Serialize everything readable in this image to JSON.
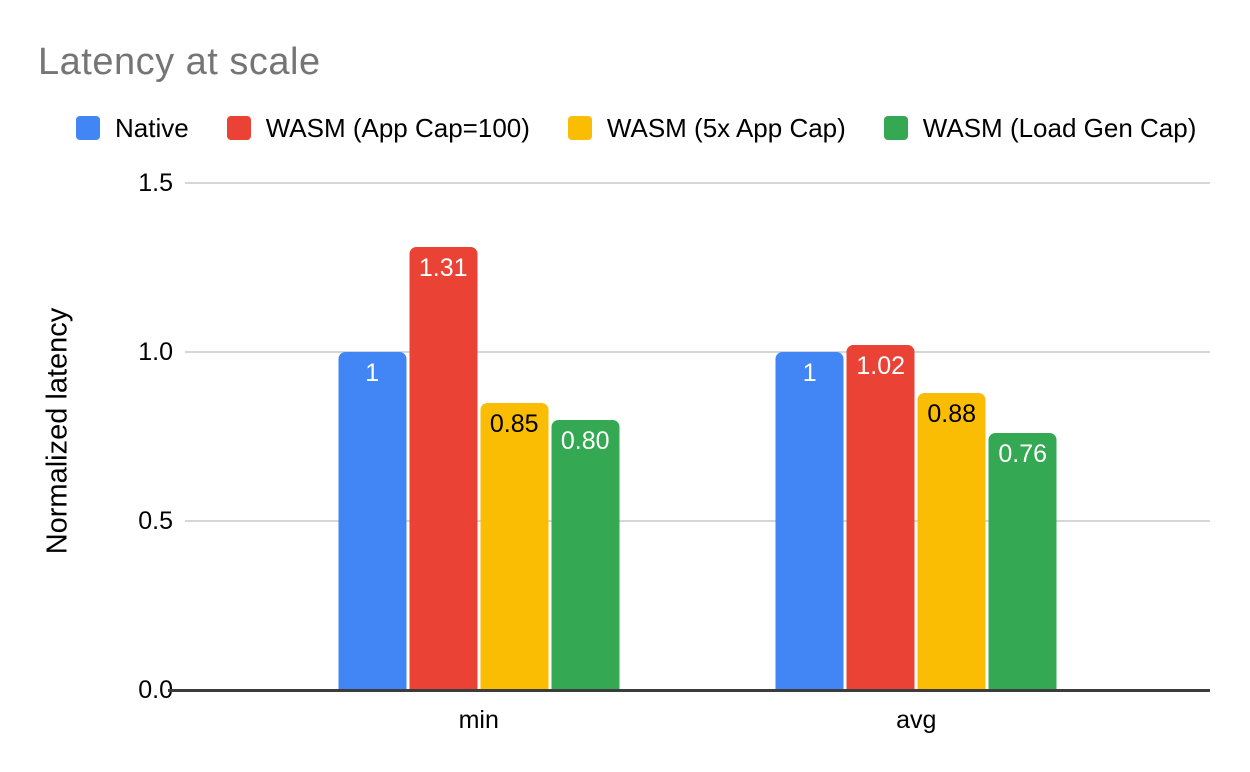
{
  "colors": {
    "background": "#ffffff",
    "title_text": "#757575",
    "body_text": "#000000",
    "gridline": "#d6d6d6",
    "axis_line": "#3c3c3c"
  },
  "chart_data": {
    "type": "bar",
    "title": "Latency at scale",
    "xlabel": "",
    "ylabel": "Normalized latency",
    "categories": [
      "min",
      "avg"
    ],
    "series": [
      {
        "name": "Native",
        "color": "#4285F4",
        "label_color": "#ffffff",
        "values": [
          1,
          1
        ],
        "labels": [
          "1",
          "1"
        ]
      },
      {
        "name": "WASM (App Cap=100)",
        "color": "#EA4335",
        "label_color": "#ffffff",
        "values": [
          1.31,
          1.02
        ],
        "labels": [
          "1.31",
          "1.02"
        ]
      },
      {
        "name": "WASM (5x App Cap)",
        "color": "#FBBC04",
        "label_color": "#000000",
        "values": [
          0.85,
          0.88
        ],
        "labels": [
          "0.85",
          "0.88"
        ]
      },
      {
        "name": "WASM (Load Gen Cap)",
        "color": "#34A853",
        "label_color": "#ffffff",
        "values": [
          0.8,
          0.76
        ],
        "labels": [
          "0.80",
          "0.76"
        ]
      }
    ],
    "ylim": [
      0,
      1.5
    ],
    "yticks": [
      {
        "value": 0.0,
        "label": "0.0"
      },
      {
        "value": 0.5,
        "label": "0.5"
      },
      {
        "value": 1.0,
        "label": "1.0"
      },
      {
        "value": 1.5,
        "label": "1.5"
      }
    ],
    "grid": true,
    "legend_position": "top"
  }
}
